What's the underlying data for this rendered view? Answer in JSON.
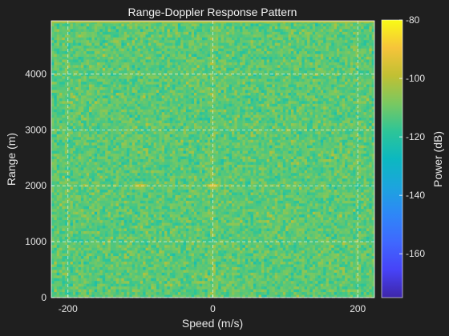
{
  "chart_data": {
    "type": "heatmap",
    "title": "Range-Doppler Response Pattern",
    "xlabel": "Speed (m/s)",
    "ylabel": "Range (m)",
    "colorbar_label": "Power (dB)",
    "xlim": [
      -223,
      223
    ],
    "ylim": [
      0,
      4950
    ],
    "x_ticks": [
      -200,
      0,
      200
    ],
    "y_ticks": [
      0,
      1000,
      2000,
      3000,
      4000
    ],
    "clim": [
      -175,
      -80
    ],
    "colorbar_ticks": [
      -160,
      -140,
      -120,
      -100,
      -80
    ],
    "grid": true,
    "colormap": "parula",
    "background_level_db": -112,
    "targets": [
      {
        "speed": -100,
        "range": 2000,
        "power_db": -98
      },
      {
        "speed": 0,
        "range": 2000,
        "power_db": -97
      }
    ],
    "colors": {
      "background": "#1f1f1f",
      "axes_edge": "#ffffff",
      "grid": "#ffffff",
      "text": "#e6e6e6"
    }
  }
}
